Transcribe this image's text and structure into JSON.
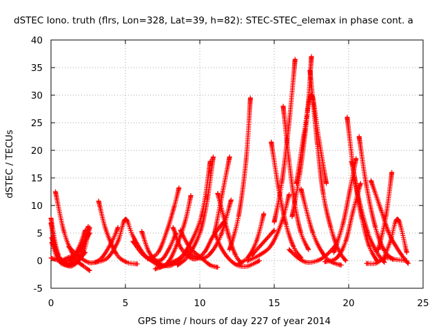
{
  "chart_data": {
    "type": "scatter",
    "title": "dSTEC Iono. truth (flrs, Lon=328, Lat=39, h=82): STEC-STEC_elemax in phase cont. a",
    "xlabel": "GPS time / hours of day 227 of year 2014",
    "ylabel": "dSTEC  / TECUs",
    "xlim": [
      0,
      25
    ],
    "ylim": [
      -5,
      40
    ],
    "xticks": [
      "0",
      "5",
      "10",
      "15",
      "20",
      "25"
    ],
    "yticks": [
      "-5",
      "0",
      "5",
      "10",
      "15",
      "20",
      "25",
      "30",
      "35",
      "40"
    ],
    "grid": true,
    "marker": "+",
    "color": "#ff0000",
    "series": [
      {
        "x": [
          0.0,
          0.5,
          1.2,
          1.8,
          2.3
        ],
        "y": [
          7.7,
          1.0,
          0.0,
          2.0,
          5.5
        ]
      },
      {
        "x": [
          0.0,
          0.4,
          1.2,
          2.0,
          2.5
        ],
        "y": [
          6.8,
          1.3,
          -0.5,
          1.5,
          6.2
        ]
      },
      {
        "x": [
          0.05,
          0.5,
          1.3,
          2.1,
          2.6
        ],
        "y": [
          4.2,
          0.6,
          -1.0,
          1.0,
          6.0
        ]
      },
      {
        "x": [
          0.0,
          0.6,
          1.1,
          1.8,
          2.6
        ],
        "y": [
          0.5,
          0.0,
          0.5,
          1.5,
          5.0
        ]
      },
      {
        "x": [
          0.3,
          0.9,
          1.6,
          2.2,
          2.6
        ],
        "y": [
          12.5,
          5.0,
          0.5,
          -1.0,
          -1.8
        ]
      },
      {
        "x": [
          0.05,
          0.5,
          1.0,
          1.7,
          2.3
        ],
        "y": [
          3.3,
          0.1,
          -0.8,
          -0.3,
          1.5
        ]
      },
      {
        "x": [
          1.2,
          2.0,
          2.7,
          3.4,
          4.1,
          4.5
        ],
        "y": [
          2.5,
          0.5,
          -0.4,
          0.5,
          3.5,
          6.0
        ]
      },
      {
        "x": [
          3.2,
          3.7,
          4.4,
          5.1,
          5.8
        ],
        "y": [
          10.8,
          5.5,
          1.2,
          -0.3,
          -0.6
        ]
      },
      {
        "x": [
          3.0,
          3.8,
          4.5,
          5.0,
          5.5,
          6.3,
          7.3
        ],
        "y": [
          -0.3,
          0.5,
          3.5,
          7.5,
          4.5,
          1.0,
          -1.0
        ]
      },
      {
        "x": [
          5.5,
          6.3,
          7.3,
          7.9,
          8.4
        ],
        "y": [
          3.5,
          0.8,
          0.0,
          2.0,
          5.0
        ]
      },
      {
        "x": [
          6.1,
          6.6,
          7.3,
          8.0,
          8.7,
          9.2
        ],
        "y": [
          5.3,
          1.5,
          -0.5,
          -0.9,
          0.3,
          2.0
        ]
      },
      {
        "x": [
          6.5,
          7.2,
          7.8,
          8.3,
          8.6
        ],
        "y": [
          0.3,
          1.5,
          5.5,
          10.0,
          13.2
        ]
      },
      {
        "x": [
          7.0,
          7.8,
          8.4,
          9.0,
          9.4
        ],
        "y": [
          -1.5,
          -0.5,
          2.5,
          7.0,
          11.8
        ]
      },
      {
        "x": [
          8.2,
          8.8,
          9.6,
          10.3,
          10.9,
          11.6
        ],
        "y": [
          6.0,
          2.0,
          0.3,
          1.5,
          4.5,
          7.0
        ]
      },
      {
        "x": [
          8.5,
          9.2,
          10.0,
          10.5,
          10.9
        ],
        "y": [
          -0.8,
          0.8,
          5.0,
          11.0,
          18.8
        ]
      },
      {
        "x": [
          7.3,
          8.0,
          9.0,
          10.1,
          10.7
        ],
        "y": [
          -1.2,
          -0.5,
          1.5,
          8.0,
          18.0
        ]
      },
      {
        "x": [
          8.7,
          9.3,
          10.1,
          10.7,
          11.2
        ],
        "y": [
          5.5,
          2.5,
          0.5,
          -0.8,
          -1.2
        ]
      },
      {
        "x": [
          9.2,
          9.9,
          10.6,
          11.4,
          12.1
        ],
        "y": [
          1.5,
          0.5,
          1.0,
          4.5,
          11.0
        ]
      },
      {
        "x": [
          11.2,
          11.6,
          12.0,
          12.4,
          12.8
        ],
        "y": [
          12.2,
          8.0,
          4.0,
          1.0,
          -0.5
        ]
      },
      {
        "x": [
          11.0,
          11.4,
          11.9,
          12.5,
          13.2,
          14.0
        ],
        "y": [
          5.0,
          2.5,
          0.5,
          -0.8,
          -1.0,
          0.0
        ]
      },
      {
        "x": [
          12.0,
          12.6,
          13.1,
          13.4
        ],
        "y": [
          2.0,
          8.0,
          18.0,
          29.5
        ]
      },
      {
        "x": [
          11.0,
          11.5,
          12.0
        ],
        "y": [
          5.0,
          12.0,
          18.8
        ]
      },
      {
        "x": [
          12.6,
          13.2,
          13.8,
          14.3
        ],
        "y": [
          -0.5,
          0.5,
          3.5,
          8.5
        ]
      },
      {
        "x": [
          13.2,
          14.0,
          14.8,
          15.5,
          16.0
        ],
        "y": [
          0.0,
          1.0,
          2.8,
          7.0,
          12.0
        ]
      },
      {
        "x": [
          14.8,
          15.3,
          15.8,
          16.3,
          16.8
        ],
        "y": [
          21.5,
          13.0,
          6.5,
          2.5,
          0.5
        ]
      },
      {
        "x": [
          15.0,
          15.5,
          16.0,
          16.4
        ],
        "y": [
          7.0,
          14.0,
          25.0,
          36.5
        ]
      },
      {
        "x": [
          15.6,
          16.0,
          16.4,
          16.8,
          17.3
        ],
        "y": [
          28.0,
          18.0,
          10.0,
          5.0,
          2.0
        ]
      },
      {
        "x": [
          16.0,
          16.6,
          17.2,
          17.9,
          18.5,
          19.2
        ],
        "y": [
          2.0,
          0.5,
          -0.3,
          0.0,
          1.0,
          3.0
        ]
      },
      {
        "x": [
          16.2,
          16.7,
          17.2,
          17.5
        ],
        "y": [
          8.0,
          15.5,
          26.0,
          37.0
        ]
      },
      {
        "x": [
          17.4,
          17.9,
          18.3,
          18.8,
          19.3,
          19.8
        ],
        "y": [
          34.5,
          21.0,
          12.0,
          6.0,
          2.0,
          0.0
        ]
      },
      {
        "x": [
          16.5,
          17.0,
          17.5,
          18.0,
          18.5
        ],
        "y": [
          14.0,
          23.0,
          30.0,
          22.0,
          14.0
        ]
      },
      {
        "x": [
          16.8,
          17.6,
          18.4,
          19.0,
          19.5
        ],
        "y": [
          13.0,
          5.0,
          0.8,
          -0.4,
          -0.8
        ]
      },
      {
        "x": [
          18.4,
          19.2,
          19.8,
          20.3,
          20.8
        ],
        "y": [
          -0.2,
          0.5,
          3.5,
          9.0,
          14.0
        ]
      },
      {
        "x": [
          19.0,
          19.6,
          20.1,
          20.5
        ],
        "y": [
          1.5,
          6.5,
          13.0,
          18.5
        ]
      },
      {
        "x": [
          19.9,
          20.4,
          20.9,
          21.4,
          21.9
        ],
        "y": [
          26.0,
          15.0,
          7.5,
          2.5,
          0.0
        ]
      },
      {
        "x": [
          20.2,
          20.7,
          21.3,
          21.9,
          22.4
        ],
        "y": [
          18.0,
          11.0,
          5.0,
          1.5,
          -0.3
        ]
      },
      {
        "x": [
          20.7,
          21.2,
          21.8,
          22.4,
          23.0
        ],
        "y": [
          22.5,
          13.5,
          6.0,
          1.8,
          0.2
        ]
      },
      {
        "x": [
          21.2,
          21.8,
          22.5,
          23.2,
          23.9
        ],
        "y": [
          -0.5,
          -0.5,
          0.5,
          0.2,
          0.0
        ]
      },
      {
        "x": [
          21.5,
          22.2,
          22.7,
          23.2,
          23.7,
          24.0
        ],
        "y": [
          14.5,
          9.0,
          5.0,
          2.5,
          0.5,
          -0.5
        ]
      },
      {
        "x": [
          22.0,
          22.5,
          22.9
        ],
        "y": [
          2.0,
          8.0,
          16.0
        ]
      },
      {
        "x": [
          22.3,
          22.8,
          23.3,
          23.9
        ],
        "y": [
          0.0,
          3.5,
          7.5,
          1.5
        ]
      },
      {
        "x": [
          13.5,
          14.0,
          14.5,
          15.0
        ],
        "y": [
          1.0,
          2.5,
          4.0,
          5.5
        ]
      }
    ]
  }
}
